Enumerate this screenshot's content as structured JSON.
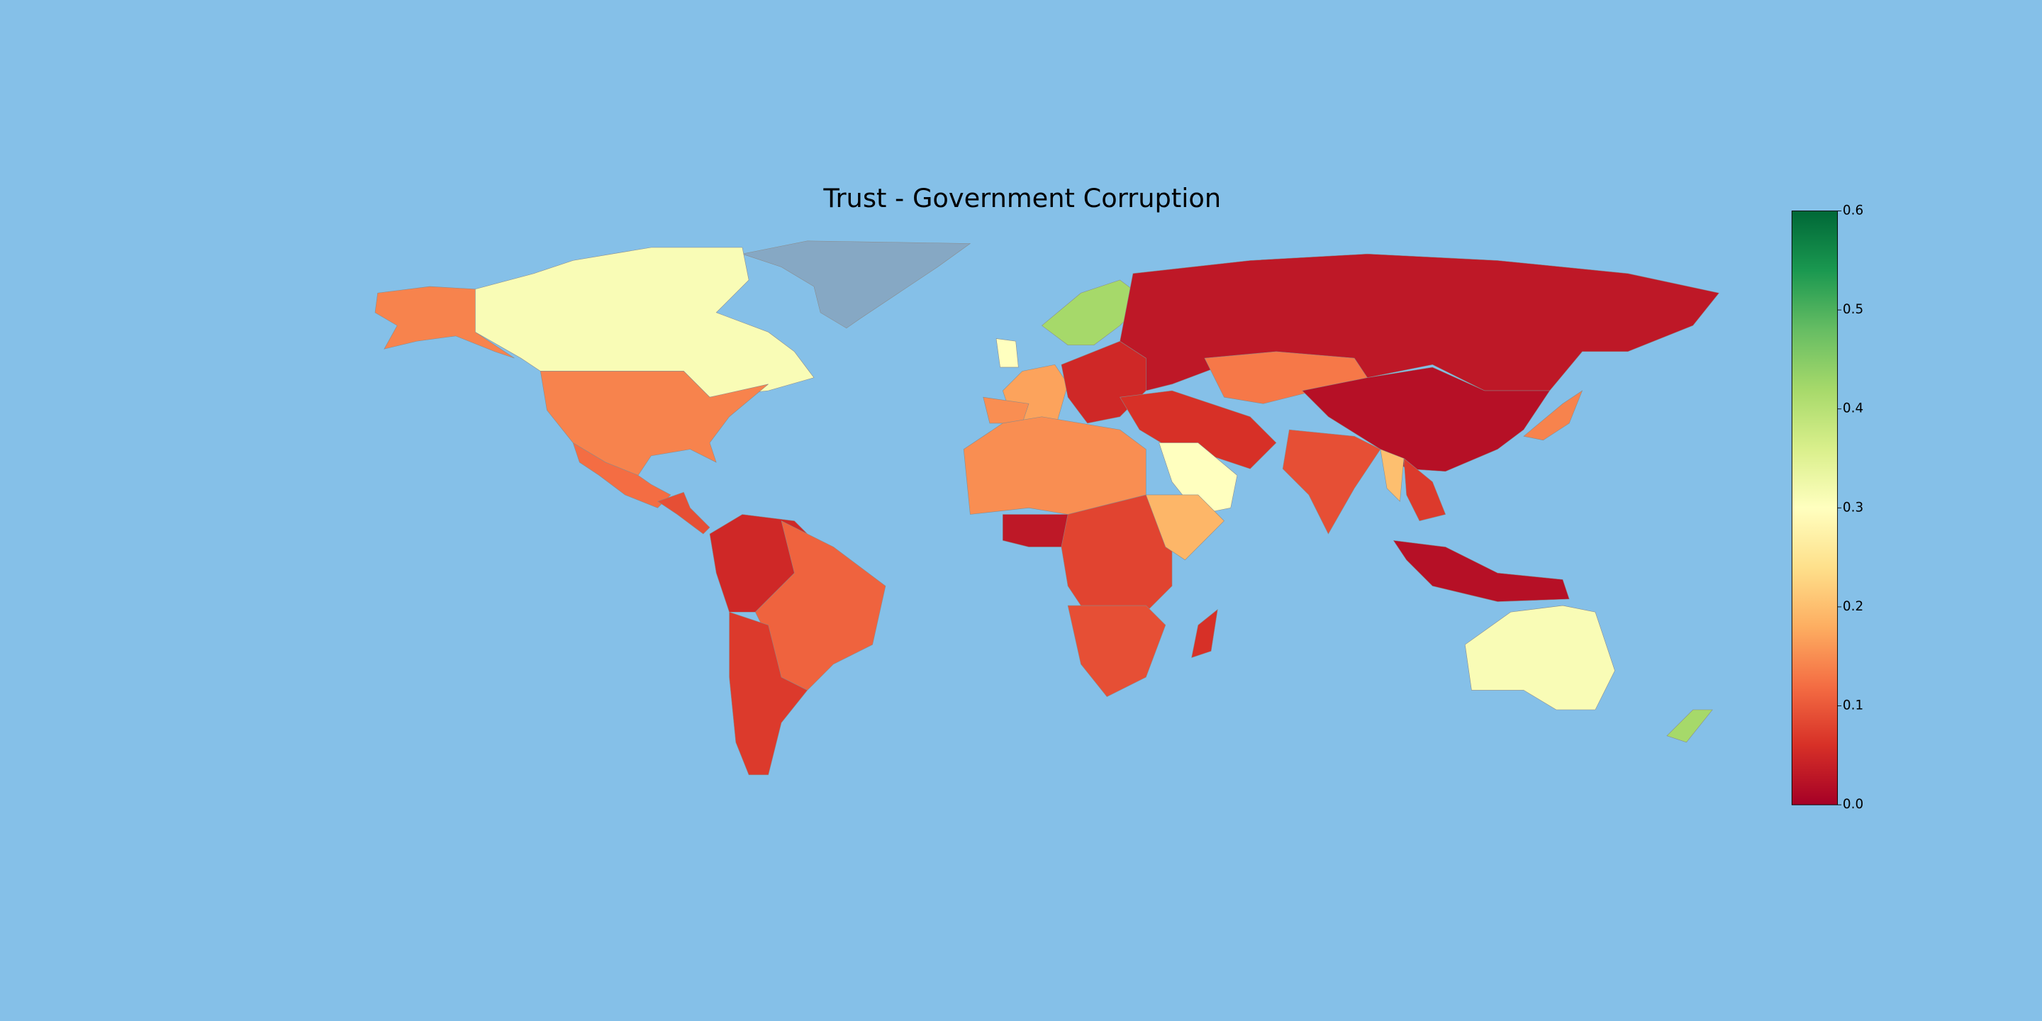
{
  "chart_data": {
    "type": "choropleth",
    "title": "Trust - Government Corruption",
    "colormap": "RdYlGn",
    "values": [
      0.14,
      0.31,
      0.14,
      0.12,
      0.09,
      0.05,
      0.11,
      0.07,
      0.17,
      0.15,
      0.3,
      0.42,
      0.05,
      0.03,
      0.13,
      0.02,
      0.06,
      0.3,
      0.09,
      0.07,
      0.2,
      0.02,
      0.14,
      0.31,
      0.42,
      0.15,
      0.03,
      0.08,
      0.19,
      0.09,
      0.06
    ],
    "clim": [
      0,
      0.6
    ],
    "cticks": [
      {
        "value": 0,
        "label": "0.0"
      },
      0.1,
      0.2,
      0.3,
      0.4,
      0.5,
      0.6
    ]
  }
}
